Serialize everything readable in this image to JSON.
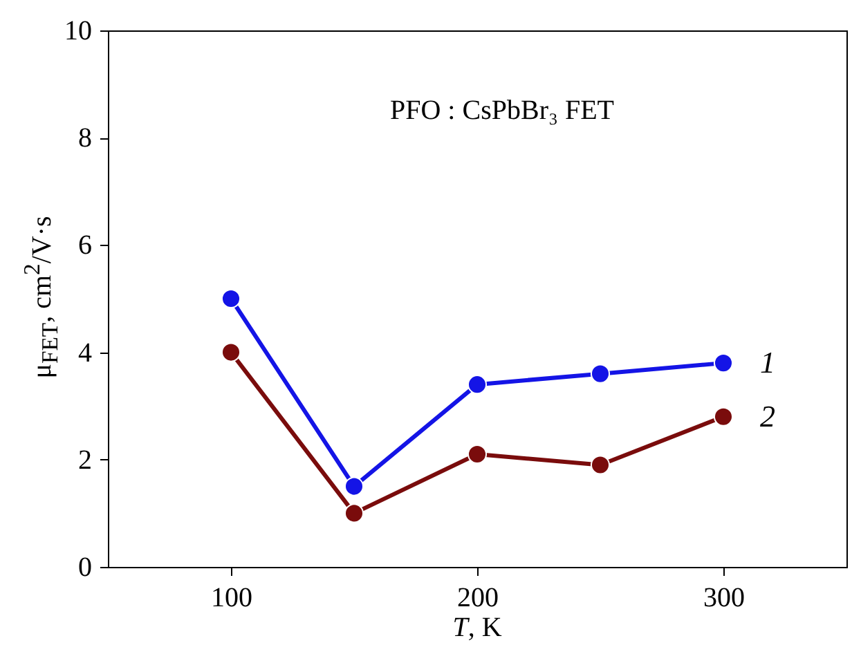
{
  "chart_data": {
    "type": "line",
    "xlabel": "T, K",
    "ylabel": "μ$_{FET}$, cm$^{2}$/V·s",
    "annotations": [
      "PFO : CsPbBr₃ FET"
    ],
    "x": [
      100,
      150,
      200,
      250,
      300
    ],
    "series": [
      {
        "name": "1",
        "color": "#1414e6",
        "values": [
          5.0,
          1.5,
          3.4,
          3.6,
          3.8
        ]
      },
      {
        "name": "2",
        "color": "#7a0c0c",
        "values": [
          4.0,
          1.0,
          2.1,
          1.9,
          2.8
        ]
      }
    ],
    "xlim": [
      50,
      350
    ],
    "xticks": [
      100,
      200,
      300
    ],
    "ylim": [
      0,
      10
    ],
    "yticks": [
      0,
      2,
      4,
      6,
      8,
      10
    ],
    "marker": "circle",
    "line_style": "solid"
  }
}
